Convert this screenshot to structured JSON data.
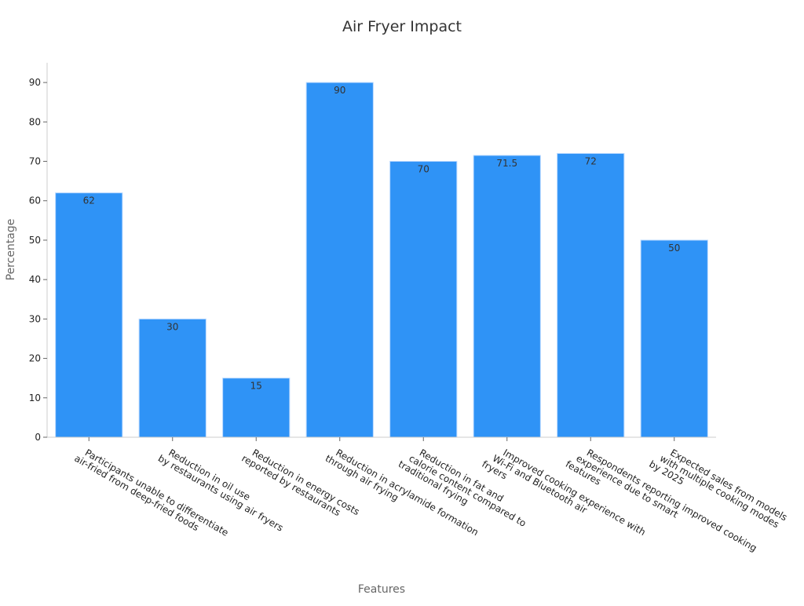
{
  "chart_data": {
    "type": "bar",
    "title": "Air Fryer Impact",
    "xlabel": "Features",
    "ylabel": "Percentage",
    "ylim": [
      0,
      95
    ],
    "yticks": [
      0,
      10,
      20,
      30,
      40,
      50,
      60,
      70,
      80,
      90
    ],
    "grid": false,
    "bar_color": "#2f93f6",
    "categories": [
      [
        "Participants unable to differentiate",
        "air-fried from deep-fried foods"
      ],
      [
        "Reduction in oil use",
        "by restaurants using air fryers"
      ],
      [
        "Reduction in energy costs",
        "reported by restaurants"
      ],
      [
        "Reduction in acrylamide formation",
        "through air frying"
      ],
      [
        "Reduction in fat and",
        "calorie content compared to",
        "traditional frying"
      ],
      [
        "Improved cooking experience with",
        "Wi-Fi and Bluetooth air",
        "fryers"
      ],
      [
        "Respondents reporting improved cooking",
        "experience due to smart",
        "features"
      ],
      [
        "Expected sales from models",
        "with multiple cooking modes",
        "by 2025"
      ]
    ],
    "values": [
      62,
      30,
      15,
      90,
      70,
      71.5,
      72,
      50
    ],
    "data_labels": [
      "62",
      "30",
      "15",
      "90",
      "70",
      "71.5",
      "72",
      "50"
    ]
  }
}
